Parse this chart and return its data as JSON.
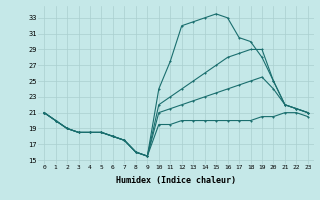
{
  "xlabel": "Humidex (Indice chaleur)",
  "background_color": "#c5e8e8",
  "grid_color": "#aacfcf",
  "line_color": "#1a6e6e",
  "yticks": [
    15,
    17,
    19,
    21,
    23,
    25,
    27,
    29,
    31,
    33
  ],
  "xticks": [
    0,
    1,
    2,
    3,
    4,
    5,
    6,
    7,
    8,
    9,
    10,
    11,
    12,
    13,
    14,
    15,
    16,
    17,
    18,
    19,
    20,
    21,
    22,
    23
  ],
  "xlim": [
    -0.5,
    23.5
  ],
  "ylim": [
    14.5,
    34.5
  ],
  "series1_y": [
    21,
    20,
    19,
    18.5,
    18.5,
    18.5,
    18,
    17.5,
    16,
    15.5,
    19.5,
    19.5,
    20,
    20,
    20,
    20,
    20,
    20,
    20,
    20.5,
    20.5,
    21,
    21,
    20.5
  ],
  "series2_y": [
    21,
    20,
    19,
    18.5,
    18.5,
    18.5,
    18,
    17.5,
    16,
    15.5,
    24,
    27.5,
    32,
    32.5,
    33,
    33.5,
    33,
    30.5,
    30,
    28,
    25,
    22,
    21.5,
    21
  ],
  "series3_y": [
    21,
    20,
    19,
    18.5,
    18.5,
    18.5,
    18,
    17.5,
    16,
    15.5,
    22,
    23,
    24,
    25,
    26,
    27,
    28,
    28.5,
    29,
    29,
    25,
    22,
    21.5,
    21
  ],
  "series4_y": [
    21,
    20,
    19,
    18.5,
    18.5,
    18.5,
    18,
    17.5,
    16,
    15.5,
    21,
    21.5,
    22,
    22.5,
    23,
    23.5,
    24,
    24.5,
    25,
    25.5,
    24,
    22,
    21.5,
    21
  ]
}
